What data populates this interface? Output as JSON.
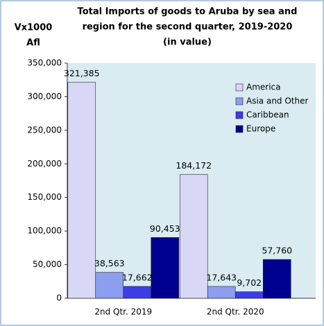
{
  "chart_data": {
    "type": "bar",
    "title": [
      "Total Imports of goods to Aruba by sea and",
      "region for the second quarter, 2019-2020",
      "(in value)"
    ],
    "ylabel": [
      "Vx1000",
      "Afl"
    ],
    "categories": [
      "2nd Qtr. 2019",
      "2nd Qtr. 2020"
    ],
    "series": [
      {
        "name": "America",
        "color": "#d8d8f6",
        "values": [
          321385,
          184172
        ],
        "value_labels": [
          "321,385",
          "184,172"
        ]
      },
      {
        "name": "Asia and Other",
        "color": "#8c9ef0",
        "values": [
          38563,
          17643
        ],
        "value_labels": [
          "38,563",
          "17,643"
        ]
      },
      {
        "name": "Caribbean",
        "color": "#3d3de6",
        "values": [
          17662,
          9702
        ],
        "value_labels": [
          "17,662",
          "9,702"
        ]
      },
      {
        "name": "Europe",
        "color": "#000090",
        "values": [
          90453,
          57760
        ],
        "value_labels": [
          "90,453",
          "57,760"
        ]
      }
    ],
    "ylim": [
      0,
      350000
    ],
    "yticks": [
      {
        "value": 0,
        "label": "0"
      },
      {
        "value": 50000,
        "label": "50,000"
      },
      {
        "value": 100000,
        "label": "100,000"
      },
      {
        "value": 150000,
        "label": "150,000"
      },
      {
        "value": 200000,
        "label": "200,000"
      },
      {
        "value": 250000,
        "label": "250,000"
      },
      {
        "value": 300000,
        "label": "300,000"
      },
      {
        "value": 350000,
        "label": "350,000"
      }
    ],
    "legend": "top-right"
  }
}
